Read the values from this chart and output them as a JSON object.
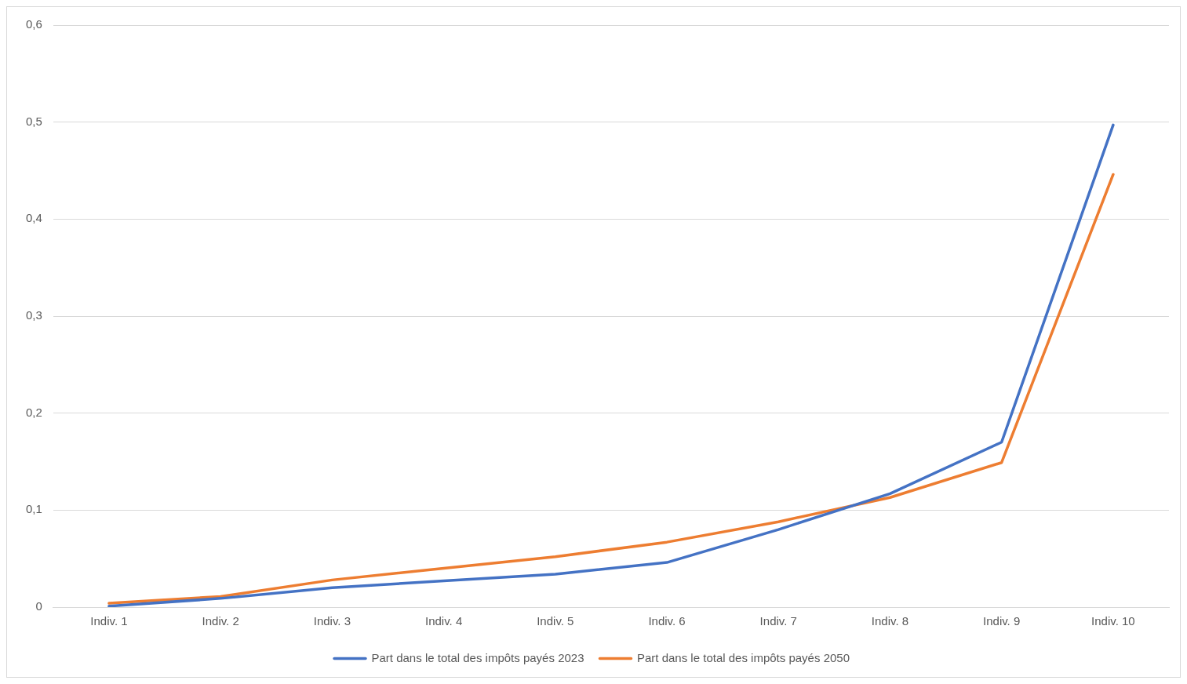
{
  "chart_data": {
    "type": "line",
    "categories": [
      "Indiv. 1",
      "Indiv. 2",
      "Indiv. 3",
      "Indiv. 4",
      "Indiv. 5",
      "Indiv. 6",
      "Indiv. 7",
      "Indiv. 8",
      "Indiv. 9",
      "Indiv. 10"
    ],
    "series": [
      {
        "name": "Part dans le total des impôts payés 2023",
        "color": "#4472c4",
        "values": [
          0.001,
          0.009,
          0.02,
          0.027,
          0.034,
          0.046,
          0.08,
          0.117,
          0.17,
          0.497
        ]
      },
      {
        "name": "Part dans le total des impôts payés 2050",
        "color": "#ed7d31",
        "values": [
          0.004,
          0.011,
          0.028,
          0.04,
          0.052,
          0.067,
          0.088,
          0.113,
          0.149,
          0.446
        ]
      }
    ],
    "ylim": [
      0,
      0.6
    ],
    "yticks": [
      0,
      {
        "value": 0.1,
        "label": "0,1"
      },
      {
        "value": 0.2,
        "label": "0,2"
      },
      {
        "value": 0.3,
        "label": "0,3"
      },
      {
        "value": 0.4,
        "label": "0,4"
      },
      {
        "value": 0.5,
        "label": "0,5"
      },
      {
        "value": 0.6,
        "label": "0,6"
      }
    ],
    "grid": "y",
    "legend": "bottom",
    "marker": "none",
    "line_style": "solid"
  }
}
